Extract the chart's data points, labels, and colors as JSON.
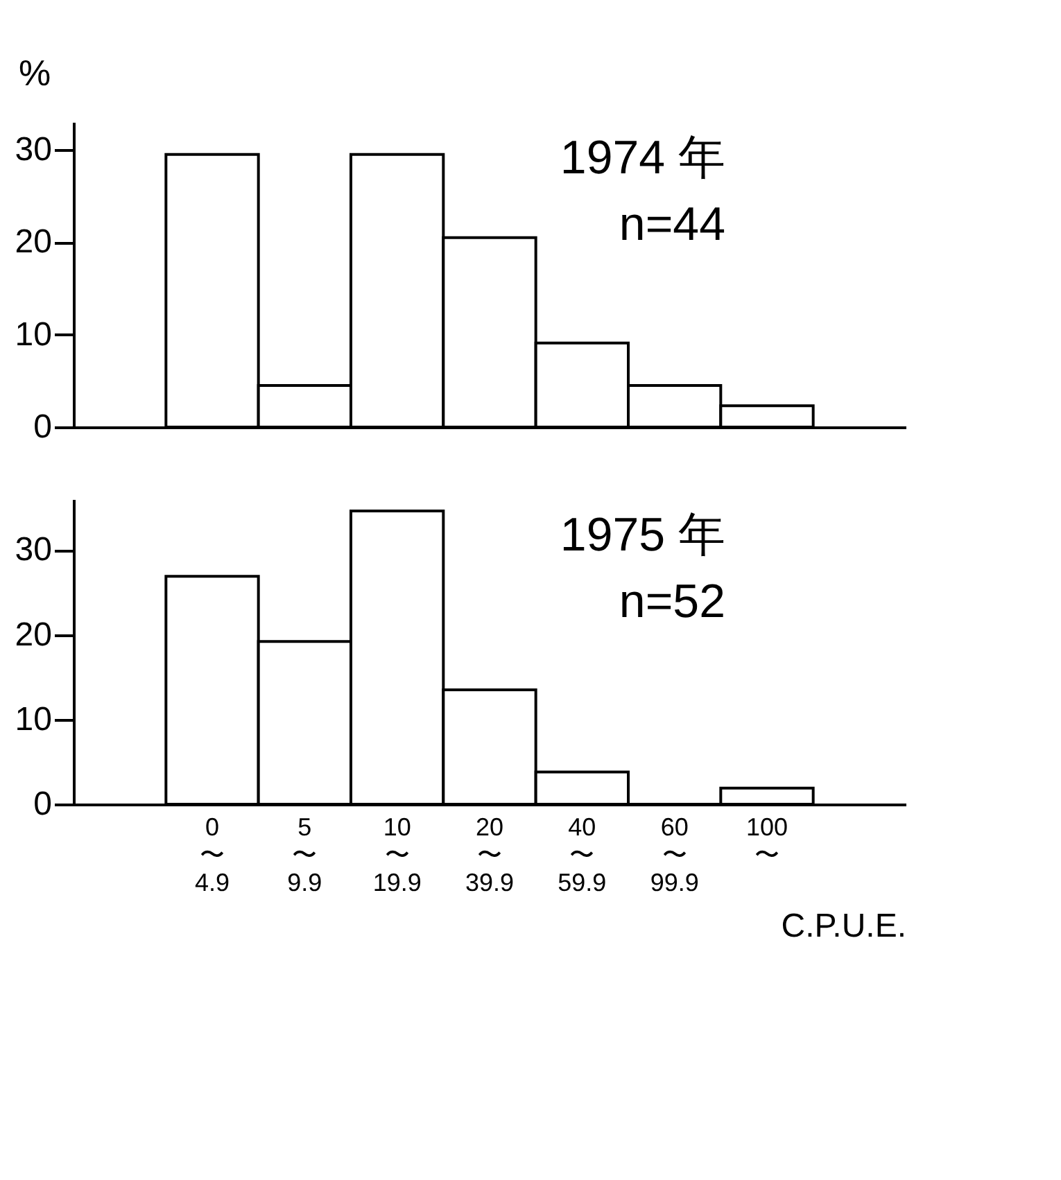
{
  "chart_data": [
    {
      "type": "bar",
      "annotations": [
        "1974 年",
        "n=44"
      ],
      "ylabel": "%",
      "categories": [
        null,
        null,
        null,
        null,
        null,
        null,
        null
      ],
      "values": [
        29.5,
        4.5,
        29.5,
        20.5,
        9.1,
        4.5,
        2.3
      ],
      "color": "#ffffff",
      "ylim": [
        0,
        33
      ],
      "yticks": [
        0,
        10,
        20,
        30
      ],
      "tick_labels": "y"
    },
    {
      "type": "bar",
      "annotations": [
        "1975 年",
        "n=52"
      ],
      "xlabel": "C.P.U.E.",
      "categories": [
        "0\n〜\n4.9",
        "5\n〜\n9.9",
        "10\n〜\n19.9",
        "20\n〜\n39.9",
        "40\n〜\n59.9",
        "60\n〜\n99.9",
        "100\n〜"
      ],
      "values": [
        26.9,
        19.2,
        34.6,
        13.5,
        3.8,
        0,
        1.9
      ],
      "color": "#ffffff",
      "ylim": [
        0,
        36
      ],
      "yticks": [
        0,
        10,
        20,
        30
      ]
    }
  ]
}
